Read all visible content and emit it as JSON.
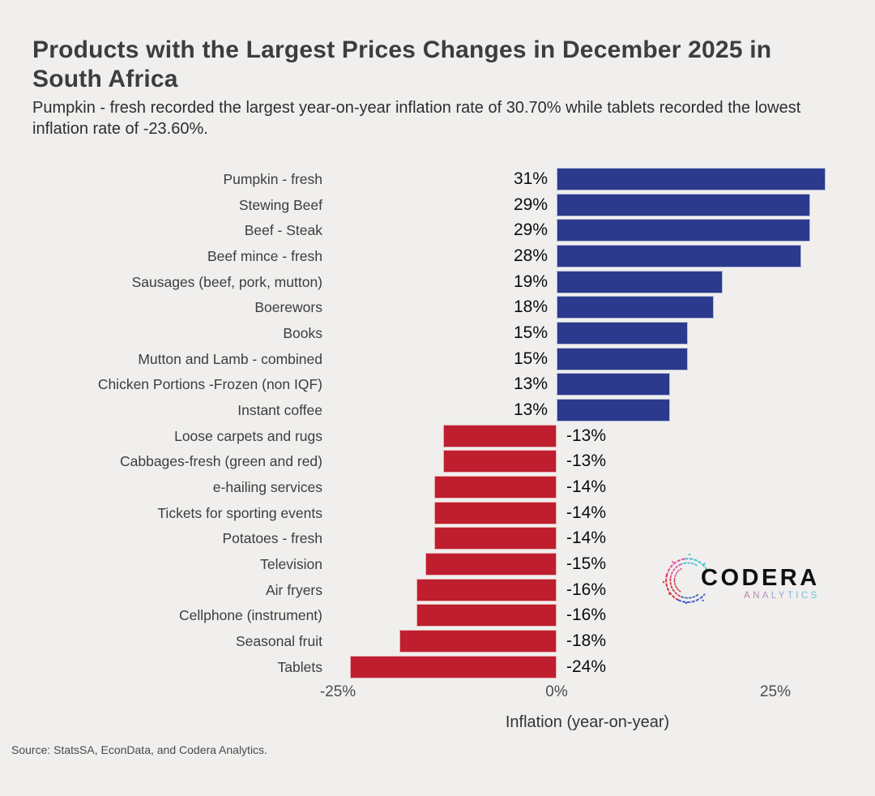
{
  "chart_data": {
    "type": "bar",
    "orientation": "horizontal",
    "title": "Products with the Largest Prices Changes in December 2025 in South Africa",
    "subtitle": "Pumpkin - fresh recorded the largest year-on-year inflation rate of 30.70% while tablets recorded the lowest inflation rate of -23.60%.",
    "categories": [
      "Pumpkin - fresh",
      "Stewing Beef",
      "Beef - Steak",
      "Beef mince - fresh",
      "Sausages (beef, pork, mutton)",
      "Boerewors",
      "Books",
      "Mutton and Lamb - combined",
      "Chicken Portions -Frozen (non IQF)",
      "Instant coffee",
      "Loose carpets and rugs",
      "Cabbages-fresh (green and red)",
      "e-hailing services",
      "Tickets for sporting events",
      "Potatoes - fresh",
      "Television",
      "Air fryers",
      "Cellphone (instrument)",
      "Seasonal fruit",
      "Tablets"
    ],
    "values": [
      30.7,
      29,
      29,
      28,
      19,
      18,
      15,
      15,
      13,
      13,
      -13,
      -13,
      -14,
      -14,
      -14,
      -15,
      -16,
      -16,
      -18,
      -23.6
    ],
    "value_labels": [
      "31%",
      "29%",
      "29%",
      "28%",
      "19%",
      "18%",
      "15%",
      "15%",
      "13%",
      "13%",
      "-13%",
      "-13%",
      "-14%",
      "-14%",
      "-14%",
      "-15%",
      "-16%",
      "-16%",
      "-18%",
      "-24%"
    ],
    "xlabel": "Inflation (year-on-year)",
    "x_ticks": [
      {
        "label": "-25%",
        "value": -25
      },
      {
        "label": "0%",
        "value": 0
      },
      {
        "label": "25%",
        "value": 25
      }
    ],
    "xlim": [
      -26,
      31
    ],
    "grid": false,
    "legend": "none",
    "colors": {
      "positive": "#2b3a8c",
      "negative": "#be1e2d"
    }
  },
  "logo": {
    "wordmark": "CODERA",
    "subtext": "ANALYTICS",
    "gradient": [
      "#e25973",
      "#d06a9e",
      "#8fb0d8",
      "#5cc3dc"
    ]
  },
  "footer": {
    "source": "Source: StatsSA, EconData, and Codera Analytics."
  }
}
